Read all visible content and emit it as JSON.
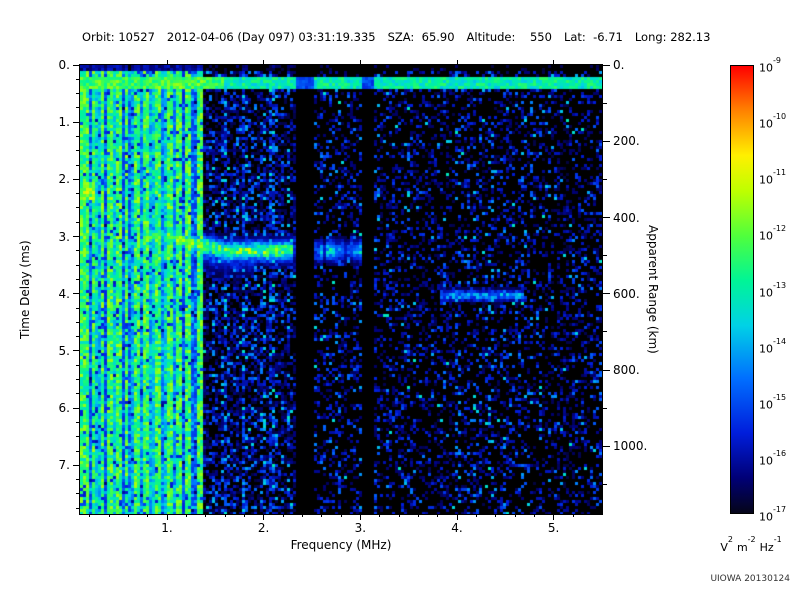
{
  "header": {
    "fields": [
      "Orbit: 10527",
      "2012-04-06 (Day 097) 03:31:19.335",
      "SZA:  65.90",
      "Altitude:    550",
      "Lat:  -6.71",
      "Long: 282.13"
    ]
  },
  "credit": "UIOWA 20130124",
  "chart_data": {
    "type": "heatmap",
    "title": "",
    "xlabel": "Frequency (MHz)",
    "ylabel_left": "Time Delay (ms)",
    "ylabel_right": "Apparent Range (km)",
    "xlim": [
      0.1,
      5.5
    ],
    "ylim_ms": [
      0,
      7.85
    ],
    "x_ticks": [
      1,
      2,
      3,
      4,
      5
    ],
    "x_tick_labels": [
      "1.",
      "2.",
      "3.",
      "4.",
      "5."
    ],
    "y_ticks_ms": [
      0,
      1,
      2,
      3,
      4,
      5,
      6,
      7
    ],
    "y_tick_labels": [
      "0.",
      "1.",
      "2.",
      "3.",
      "4.",
      "5.",
      "6.",
      "7."
    ],
    "right_ticks_km": [
      0,
      200,
      400,
      600,
      800,
      1000
    ],
    "right_tick_labels": [
      "0.",
      "200.",
      "400.",
      "600.",
      "800.",
      "1000."
    ],
    "grid": false,
    "background": "#000000",
    "colorbar": {
      "base": "10",
      "exponents": [
        -9,
        -10,
        -11,
        -12,
        -13,
        -14,
        -15,
        -16,
        -17
      ],
      "value_range": [
        "1e-17",
        "1e-9"
      ],
      "unit_parts": [
        [
          "V",
          "2"
        ],
        [
          "m",
          "-2"
        ],
        [
          "Hz",
          "-1"
        ]
      ]
    },
    "colormap_stops": [
      [
        0.0,
        [
          5,
          5,
          25
        ]
      ],
      [
        0.08,
        [
          0,
          0,
          120
        ]
      ],
      [
        0.18,
        [
          0,
          30,
          220
        ]
      ],
      [
        0.3,
        [
          0,
          110,
          255
        ]
      ],
      [
        0.42,
        [
          0,
          210,
          230
        ]
      ],
      [
        0.52,
        [
          0,
          245,
          150
        ]
      ],
      [
        0.62,
        [
          80,
          255,
          60
        ]
      ],
      [
        0.72,
        [
          190,
          255,
          0
        ]
      ],
      [
        0.8,
        [
          255,
          240,
          0
        ]
      ],
      [
        0.9,
        [
          255,
          130,
          0
        ]
      ],
      [
        1.0,
        [
          255,
          0,
          0
        ]
      ]
    ],
    "features": [
      {
        "name": "transmitter-pulse-line",
        "t_ms": [
          0.2,
          0.42
        ],
        "f_mhz": [
          0.1,
          5.5
        ],
        "intensity": 0.5
      },
      {
        "name": "low-frequency-interference-band",
        "f_mhz": [
          0.1,
          1.38
        ],
        "intensity": 0.42
      },
      {
        "name": "vertical-interference-lines",
        "f_positions": [
          0.13,
          0.18,
          0.24,
          0.33,
          0.42,
          0.5,
          0.58,
          0.68,
          0.78,
          0.9,
          1.02,
          1.12,
          1.22,
          1.33
        ],
        "intensity": 0.6
      },
      {
        "name": "ionospheric-echo-trace",
        "f_mhz": [
          0.82,
          3.05
        ],
        "t_start_ms": 3.0,
        "t_end_ms": 3.25,
        "intensity": 0.62
      },
      {
        "name": "strong-echo-blob",
        "f_mhz": [
          0.12,
          0.24
        ],
        "t_ms": [
          2.05,
          2.35
        ],
        "intensity": 0.6
      },
      {
        "name": "harmonic-echo-segment",
        "f_mhz": [
          3.83,
          4.7
        ],
        "t_ms": 4.03,
        "intensity": 0.42
      },
      {
        "name": "rfi-blanked-columns",
        "f_mhz": [
          [
            2.33,
            2.52
          ],
          [
            3.03,
            3.13
          ]
        ]
      }
    ]
  }
}
